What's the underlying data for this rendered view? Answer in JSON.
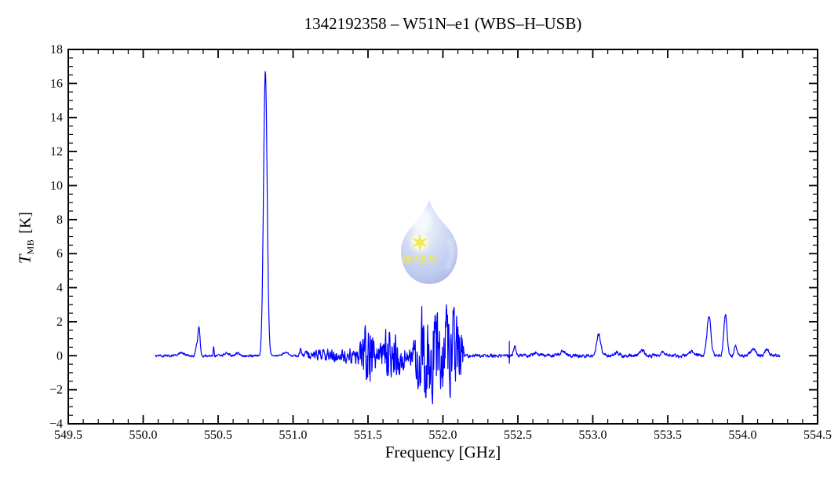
{
  "chart_data": {
    "type": "line",
    "title": "1342192358 – W51N–e1 (WBS–H–USB)",
    "xlabel": "Frequency [GHz]",
    "ylabel": "T_MB [K]",
    "ylabel_parts": {
      "symbol": "T",
      "subscript": "MB",
      "unit": "[K]"
    },
    "xlim": [
      549.5,
      554.5
    ],
    "ylim": [
      -4,
      18
    ],
    "x_ticks": {
      "values": [
        549.5,
        550.0,
        550.5,
        551.0,
        551.5,
        552.0,
        552.5,
        553.0,
        553.5,
        554.0,
        554.5
      ],
      "labels": [
        "549.5",
        "550.0",
        "550.5",
        "551.0",
        "551.5",
        "552.0",
        "552.5",
        "553.0",
        "553.5",
        "554.0",
        "554.5"
      ]
    },
    "y_ticks": {
      "values": [
        -4,
        -2,
        0,
        2,
        4,
        6,
        8,
        10,
        12,
        14,
        16,
        18
      ],
      "labels": [
        "−4",
        "−2",
        "0",
        "2",
        "4",
        "6",
        "8",
        "10",
        "12",
        "14",
        "16",
        "18"
      ]
    },
    "x_minor_step": 0.1,
    "y_minor_step": 0.5,
    "grid": false,
    "legend": "none",
    "line_color": "#0000ff",
    "axis_color": "#000000",
    "background": "#ffffff",
    "data_range": [
      550.08,
      554.25
    ],
    "baseline": 0,
    "peaks_gaussian_x_height_sigma": [
      [
        550.25,
        0.15,
        0.02
      ],
      [
        550.355,
        0.5,
        0.006
      ],
      [
        550.372,
        1.65,
        0.0075
      ],
      [
        550.47,
        0.48,
        0.0028
      ],
      [
        550.56,
        0.16,
        0.014
      ],
      [
        550.63,
        0.14,
        0.014
      ],
      [
        550.815,
        16.7,
        0.012
      ],
      [
        550.95,
        0.18,
        0.018
      ],
      [
        551.05,
        0.35,
        0.006
      ],
      [
        552.48,
        0.5,
        0.009
      ],
      [
        552.62,
        0.12,
        0.015
      ],
      [
        552.8,
        0.3,
        0.016
      ],
      [
        553.04,
        1.25,
        0.014
      ],
      [
        553.16,
        0.22,
        0.012
      ],
      [
        553.33,
        0.28,
        0.016
      ],
      [
        553.47,
        0.2,
        0.014
      ],
      [
        553.66,
        0.24,
        0.014
      ],
      [
        553.775,
        2.3,
        0.013
      ],
      [
        553.885,
        2.4,
        0.011
      ],
      [
        553.952,
        0.68,
        0.008
      ],
      [
        554.07,
        0.4,
        0.018
      ],
      [
        554.16,
        0.36,
        0.012
      ]
    ],
    "spikes_x_up_down": [
      [
        552.443,
        0.85,
        -0.45
      ]
    ],
    "noise_envelope_x_top_bottom": [
      [
        550.08,
        0.08,
        0.08
      ],
      [
        550.8,
        0.08,
        0.08
      ],
      [
        550.84,
        0.04,
        0.04
      ],
      [
        550.99,
        0.06,
        0.06
      ],
      [
        551.03,
        0.1,
        0.1
      ],
      [
        551.07,
        0.27,
        0.24
      ],
      [
        551.2,
        0.36,
        0.33
      ],
      [
        551.34,
        0.46,
        0.43
      ],
      [
        551.43,
        0.56,
        0.56
      ],
      [
        551.46,
        1.2,
        1.0
      ],
      [
        551.49,
        2.6,
        2.0
      ],
      [
        551.505,
        3.2,
        2.45
      ],
      [
        551.52,
        2.4,
        2.2
      ],
      [
        551.545,
        1.0,
        1.2
      ],
      [
        551.565,
        0.45,
        0.45
      ],
      [
        551.6,
        1.25,
        1.15
      ],
      [
        551.645,
        2.0,
        1.9
      ],
      [
        551.69,
        1.7,
        1.6
      ],
      [
        551.73,
        0.95,
        0.95
      ],
      [
        551.76,
        0.4,
        0.4
      ],
      [
        551.79,
        0.85,
        0.75
      ],
      [
        551.83,
        2.3,
        1.9
      ],
      [
        551.87,
        3.4,
        2.5
      ],
      [
        551.91,
        3.0,
        2.9
      ],
      [
        551.96,
        2.8,
        2.85
      ],
      [
        552.02,
        3.0,
        2.75
      ],
      [
        552.07,
        2.9,
        2.5
      ],
      [
        552.11,
        2.4,
        2.2
      ],
      [
        552.13,
        1.4,
        1.3
      ],
      [
        552.145,
        0.12,
        0.12
      ],
      [
        554.25,
        0.12,
        0.12
      ]
    ]
  },
  "logo": {
    "text": "WISH",
    "icon": "water-drop-with-star",
    "drop_color_light": "#edf2fc",
    "drop_color_mid": "#cfd9f4",
    "drop_color_dark": "#92a1dc",
    "star_color": "#f0e63a",
    "text_color": "#ece333"
  }
}
